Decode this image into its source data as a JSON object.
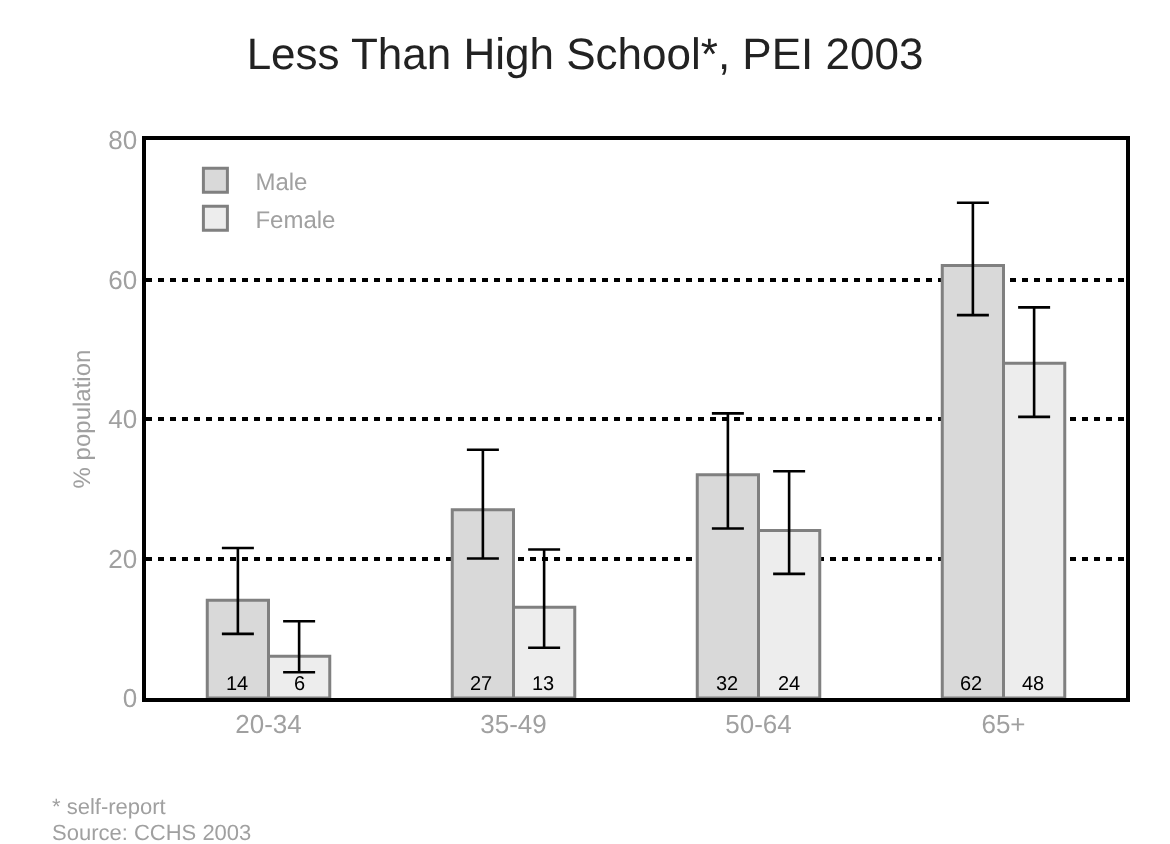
{
  "chart_data": {
    "type": "bar",
    "title": "Less Than High School*, PEI 2003",
    "ylabel": "% population",
    "categories": [
      "20-34",
      "35-49",
      "50-64",
      "65+"
    ],
    "series": [
      {
        "name": "Male",
        "color": "#d9d9d9",
        "values": [
          14,
          27,
          32,
          62
        ],
        "errors": [
          [
            9.2,
            21.5
          ],
          [
            20,
            35.6
          ],
          [
            24.3,
            40.8
          ],
          [
            54.9,
            71
          ]
        ]
      },
      {
        "name": "Female",
        "color": "#ededed",
        "values": [
          6,
          13,
          24,
          48
        ],
        "errors": [
          [
            3.7,
            11
          ],
          [
            7.2,
            21.3
          ],
          [
            17.8,
            32.5
          ],
          [
            40.3,
            56
          ]
        ]
      }
    ],
    "ylim": [
      0,
      80
    ],
    "yticks": [
      0,
      20,
      40,
      60,
      80
    ],
    "grid": "y",
    "legend": "top left",
    "data_labels": true,
    "annotations": [
      "* self-report",
      "Source: CCHS 2003"
    ]
  }
}
